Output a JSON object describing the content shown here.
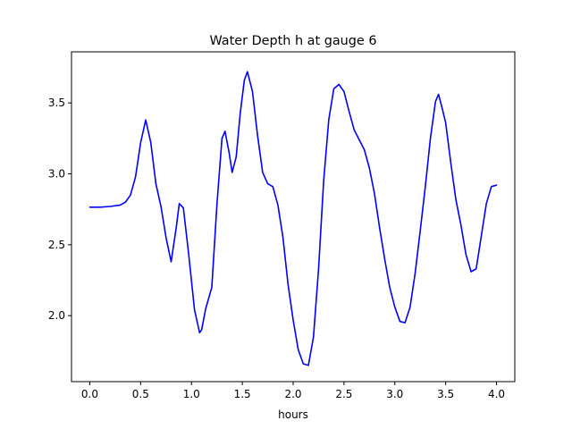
{
  "chart_data": {
    "type": "line",
    "title": "Water Depth h at gauge 6",
    "xlabel": "hours",
    "ylabel": "",
    "xlim": [
      -0.18,
      4.18
    ],
    "ylim": [
      1.535,
      3.86
    ],
    "xticks": [
      0.0,
      0.5,
      1.0,
      1.5,
      2.0,
      2.5,
      3.0,
      3.5,
      4.0
    ],
    "xtick_labels": [
      "0.0",
      "0.5",
      "1.0",
      "1.5",
      "2.0",
      "2.5",
      "3.0",
      "3.5",
      "4.0"
    ],
    "yticks": [
      2.0,
      2.5,
      3.0,
      3.5
    ],
    "ytick_labels": [
      "2.0",
      "2.5",
      "3.0",
      "3.5"
    ],
    "grid": false,
    "series": [
      {
        "color": "#0000ff",
        "x": [
          0.0,
          0.1,
          0.2,
          0.3,
          0.35,
          0.4,
          0.45,
          0.5,
          0.55,
          0.6,
          0.65,
          0.7,
          0.75,
          0.8,
          0.85,
          0.88,
          0.92,
          0.97,
          1.03,
          1.08,
          1.1,
          1.14,
          1.2,
          1.25,
          1.3,
          1.33,
          1.37,
          1.4,
          1.44,
          1.48,
          1.52,
          1.55,
          1.6,
          1.65,
          1.7,
          1.75,
          1.8,
          1.85,
          1.9,
          1.95,
          2.0,
          2.05,
          2.1,
          2.15,
          2.2,
          2.25,
          2.3,
          2.35,
          2.4,
          2.45,
          2.5,
          2.55,
          2.6,
          2.65,
          2.7,
          2.75,
          2.8,
          2.85,
          2.9,
          2.95,
          3.0,
          3.05,
          3.1,
          3.15,
          3.2,
          3.25,
          3.3,
          3.35,
          3.4,
          3.43,
          3.47,
          3.5,
          3.55,
          3.6,
          3.65,
          3.7,
          3.75,
          3.8,
          3.85,
          3.9,
          3.95,
          4.0
        ],
        "y": [
          2.765,
          2.765,
          2.77,
          2.78,
          2.8,
          2.85,
          2.98,
          3.22,
          3.38,
          3.22,
          2.93,
          2.77,
          2.55,
          2.38,
          2.62,
          2.79,
          2.76,
          2.45,
          2.04,
          1.88,
          1.9,
          2.05,
          2.2,
          2.78,
          3.25,
          3.3,
          3.15,
          3.01,
          3.12,
          3.43,
          3.66,
          3.72,
          3.58,
          3.27,
          3.01,
          2.93,
          2.91,
          2.78,
          2.55,
          2.22,
          1.97,
          1.76,
          1.66,
          1.65,
          1.85,
          2.33,
          2.95,
          3.38,
          3.6,
          3.63,
          3.58,
          3.44,
          3.31,
          3.24,
          3.17,
          3.04,
          2.86,
          2.62,
          2.4,
          2.2,
          2.06,
          1.96,
          1.95,
          2.06,
          2.3,
          2.6,
          2.91,
          3.25,
          3.51,
          3.56,
          3.45,
          3.36,
          3.08,
          2.82,
          2.64,
          2.43,
          2.31,
          2.33,
          2.56,
          2.79,
          2.91,
          2.92
        ]
      }
    ]
  }
}
